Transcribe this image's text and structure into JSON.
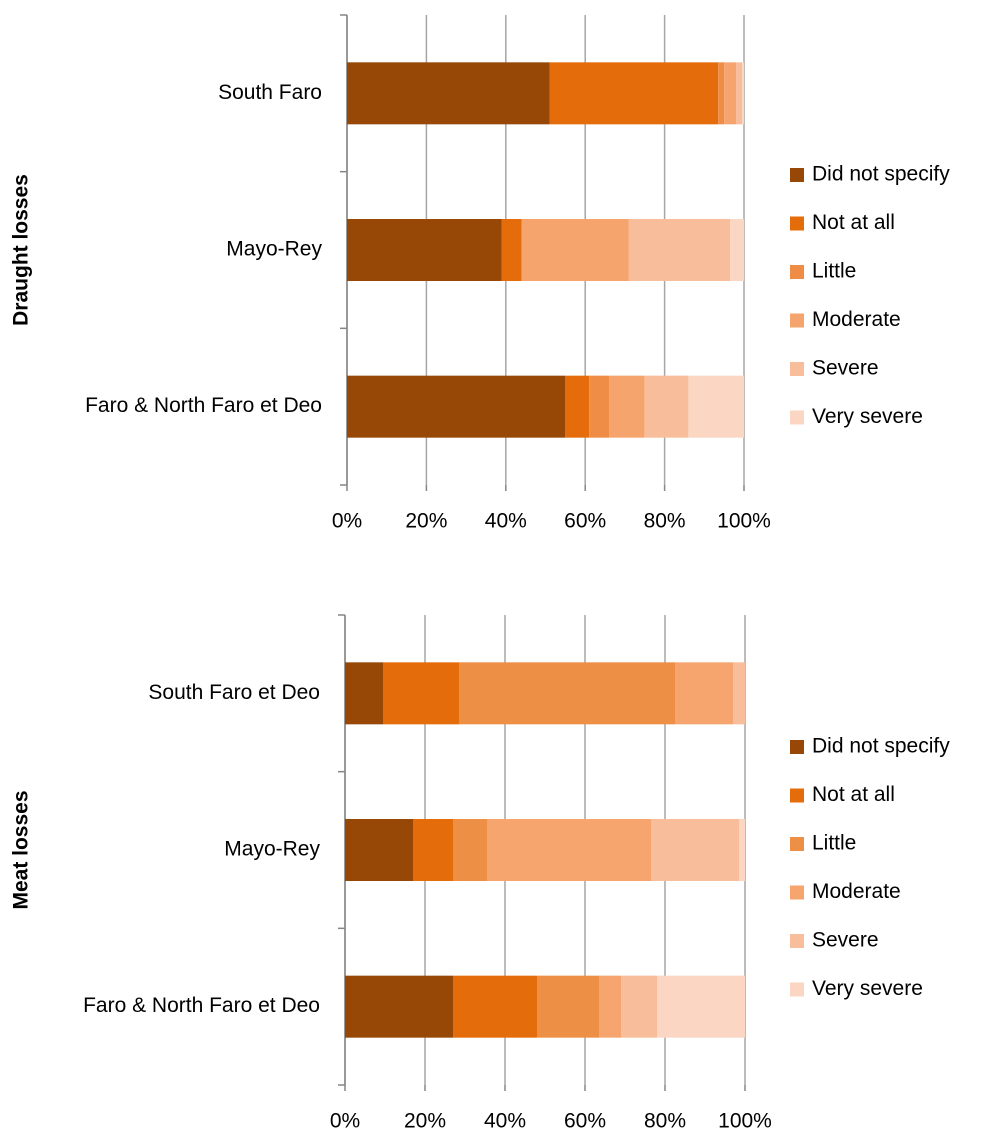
{
  "chart_data": [
    {
      "type": "bar",
      "orientation": "horizontal",
      "stacked": true,
      "ylabel": "Draught losses",
      "categories": [
        "South Faro",
        "Mayo-Rey",
        "Faro & North Faro et Deo"
      ],
      "series": [
        {
          "name": "Did not specify",
          "color": "#974706",
          "values": [
            51,
            39,
            55
          ]
        },
        {
          "name": "Not at all",
          "color": "#e46c0a",
          "values": [
            42.5,
            5,
            6
          ]
        },
        {
          "name": "Little",
          "color": "#ef8c45",
          "values": [
            1.5,
            0,
            5
          ]
        },
        {
          "name": "Moderate",
          "color": "#f6a46e",
          "values": [
            3,
            27,
            9
          ]
        },
        {
          "name": "Severe",
          "color": "#f8bd9b",
          "values": [
            1.5,
            25.5,
            11
          ]
        },
        {
          "name": "Very severe",
          "color": "#fbd6c2",
          "values": [
            0.5,
            3.5,
            14
          ]
        }
      ],
      "xlim": [
        0,
        100
      ],
      "xticks": [
        {
          "value": 0,
          "label": "0%"
        },
        {
          "value": 20,
          "label": "20%"
        },
        {
          "value": 40,
          "label": "40%"
        },
        {
          "value": 60,
          "label": "60%"
        },
        {
          "value": 80,
          "label": "80%"
        },
        {
          "value": 100,
          "label": "100%"
        }
      ],
      "grid": true,
      "legend": "right"
    },
    {
      "type": "bar",
      "orientation": "horizontal",
      "stacked": true,
      "ylabel": "Meat losses",
      "categories": [
        "South Faro et Deo",
        "Mayo-Rey",
        "Faro & North Faro et Deo"
      ],
      "series": [
        {
          "name": "Did not specify",
          "color": "#974706",
          "values": [
            9.5,
            17,
            27
          ]
        },
        {
          "name": "Not at all",
          "color": "#e46c0a",
          "values": [
            19,
            10,
            21
          ]
        },
        {
          "name": "Little",
          "color": "#ee8f46",
          "values": [
            54,
            8.5,
            15.5
          ]
        },
        {
          "name": "Moderate",
          "color": "#f6a56f",
          "values": [
            14.5,
            41,
            5.5
          ]
        },
        {
          "name": "Severe",
          "color": "#f8bd9b",
          "values": [
            3,
            22,
            9
          ]
        },
        {
          "name": "Very severe",
          "color": "#fbd6c2",
          "values": [
            0,
            1.5,
            22
          ]
        }
      ],
      "xlim": [
        0,
        100
      ],
      "xticks": [
        {
          "value": 0,
          "label": "0%"
        },
        {
          "value": 20,
          "label": "20%"
        },
        {
          "value": 40,
          "label": "40%"
        },
        {
          "value": 60,
          "label": "60%"
        },
        {
          "value": 80,
          "label": "80%"
        },
        {
          "value": 100,
          "label": "100%"
        }
      ],
      "grid": true,
      "legend": "right"
    }
  ]
}
